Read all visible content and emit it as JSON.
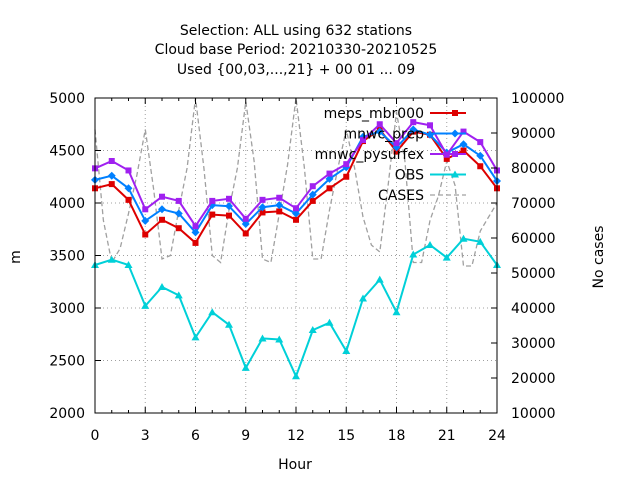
{
  "chart_data": {
    "type": "line",
    "title_lines": [
      "Selection: ALL using   632 stations",
      "Cloud base   Period: 20210330-20210525",
      "Used {00,03,...,21} + 00 01 ... 09"
    ],
    "xlabel": "Hour",
    "ylabel": "m",
    "y2label": "No cases",
    "xlim": [
      0,
      24
    ],
    "ylim": [
      2000,
      5000
    ],
    "y2lim": [
      10000,
      100000
    ],
    "xticks": [
      "0",
      "3",
      "6",
      "9",
      "12",
      "15",
      "18",
      "21",
      "24"
    ],
    "yticks": [
      "2000",
      "2500",
      "3000",
      "3500",
      "4000",
      "4500",
      "5000"
    ],
    "y2ticks": [
      "10000",
      "20000",
      "30000",
      "40000",
      "50000",
      "60000",
      "70000",
      "80000",
      "90000",
      "100000"
    ],
    "grid": true,
    "legend_position": "top-right",
    "x": [
      0,
      1,
      2,
      3,
      4,
      5,
      6,
      7,
      8,
      9,
      10,
      11,
      12,
      13,
      14,
      15,
      16,
      17,
      18,
      19,
      20,
      21,
      22,
      23,
      24
    ],
    "series": [
      {
        "name": "meps_mbr000",
        "color": "#dd0000",
        "marker": "square",
        "axis": "y1",
        "values": [
          4140,
          4180,
          4030,
          3700,
          3840,
          3760,
          3620,
          3890,
          3880,
          3710,
          3910,
          3920,
          3840,
          4020,
          4140,
          4250,
          4590,
          4700,
          4490,
          4680,
          4650,
          4420,
          4500,
          4350,
          4140
        ]
      },
      {
        "name": "mnwc_prep",
        "color": "#0080ff",
        "marker": "diamond",
        "axis": "y1",
        "values": [
          4220,
          4260,
          4140,
          3830,
          3940,
          3900,
          3720,
          3980,
          3970,
          3800,
          3960,
          3980,
          3900,
          4080,
          4230,
          4340,
          4630,
          4680,
          4530,
          4700,
          4650,
          4480,
          4560,
          4450,
          4210
        ]
      },
      {
        "name": "mnwc_pysurfex",
        "color": "#a020f0",
        "marker": "square",
        "axis": "y1",
        "values": [
          4330,
          4400,
          4310,
          3940,
          4060,
          4020,
          3780,
          4020,
          4040,
          3850,
          4030,
          4050,
          3950,
          4160,
          4280,
          4370,
          4600,
          4750,
          4570,
          4770,
          4740,
          4460,
          4680,
          4580,
          4310
        ]
      },
      {
        "name": "OBS",
        "color": "#00d0d8",
        "marker": "triangle",
        "axis": "y1",
        "values": [
          3410,
          3460,
          3410,
          3020,
          3200,
          3120,
          2720,
          2960,
          2840,
          2430,
          2710,
          2700,
          2350,
          2790,
          2860,
          2590,
          3090,
          3270,
          2960,
          3510,
          3600,
          3480,
          3660,
          3630,
          3410
        ]
      },
      {
        "name": "CASES",
        "color": "#a0a0a0",
        "marker": "none",
        "dashed": true,
        "axis": "y2",
        "x": [
          0,
          0.5,
          1,
          1.5,
          2,
          2.5,
          3,
          3.5,
          4,
          4.5,
          5,
          5.5,
          6,
          6.5,
          7,
          7.5,
          8,
          8.5,
          9,
          9.5,
          10,
          10.5,
          11,
          11.5,
          12,
          12.5,
          13,
          13.5,
          14,
          14.5,
          15,
          15.5,
          16,
          16.5,
          17,
          17.5,
          18,
          18.5,
          19,
          19.5,
          20,
          20.5,
          21,
          21.5,
          22,
          22.5,
          23,
          23.5,
          24
        ],
        "values": [
          91000,
          65000,
          53000,
          57000,
          67000,
          78000,
          91000,
          74000,
          54000,
          55000,
          68000,
          80000,
          100000,
          80000,
          55000,
          53000,
          68000,
          80000,
          99000,
          82000,
          54000,
          53000,
          67000,
          81000,
          100000,
          80000,
          54000,
          54000,
          68000,
          80000,
          91000,
          80000,
          66000,
          58000,
          56000,
          75000,
          96000,
          82000,
          53000,
          53000,
          65000,
          72000,
          82000,
          75000,
          52000,
          52000,
          62000,
          66000,
          70000
        ]
      }
    ]
  }
}
